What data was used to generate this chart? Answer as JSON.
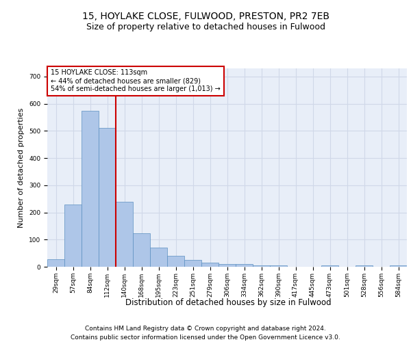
{
  "title1": "15, HOYLAKE CLOSE, FULWOOD, PRESTON, PR2 7EB",
  "title2": "Size of property relative to detached houses in Fulwood",
  "xlabel": "Distribution of detached houses by size in Fulwood",
  "ylabel": "Number of detached properties",
  "footer": "Contains HM Land Registry data © Crown copyright and database right 2024.\nContains public sector information licensed under the Open Government Licence v3.0.",
  "annotation_line1": "15 HOYLAKE CLOSE: 113sqm",
  "annotation_line2": "← 44% of detached houses are smaller (829)",
  "annotation_line3": "54% of semi-detached houses are larger (1,013) →",
  "bar_values": [
    27,
    230,
    575,
    510,
    240,
    123,
    70,
    40,
    25,
    15,
    10,
    10,
    5,
    5,
    0,
    0,
    5,
    0,
    5,
    0,
    5
  ],
  "bar_labels": [
    "29sqm",
    "57sqm",
    "84sqm",
    "112sqm",
    "140sqm",
    "168sqm",
    "195sqm",
    "223sqm",
    "251sqm",
    "279sqm",
    "306sqm",
    "334sqm",
    "362sqm",
    "390sqm",
    "417sqm",
    "445sqm",
    "473sqm",
    "501sqm",
    "528sqm",
    "556sqm",
    "584sqm"
  ],
  "bar_color": "#aec6e8",
  "bar_edgecolor": "#5a8fc0",
  "vline_color": "#cc0000",
  "ylim": [
    0,
    730
  ],
  "yticks": [
    0,
    100,
    200,
    300,
    400,
    500,
    600,
    700
  ],
  "annotation_box_color": "#cc0000",
  "grid_color": "#d0d8e8",
  "background_color": "#e8eef8",
  "title1_fontsize": 10,
  "title2_fontsize": 9,
  "xlabel_fontsize": 8.5,
  "ylabel_fontsize": 8,
  "tick_fontsize": 6.5,
  "footer_fontsize": 6.5,
  "annot_fontsize": 7
}
